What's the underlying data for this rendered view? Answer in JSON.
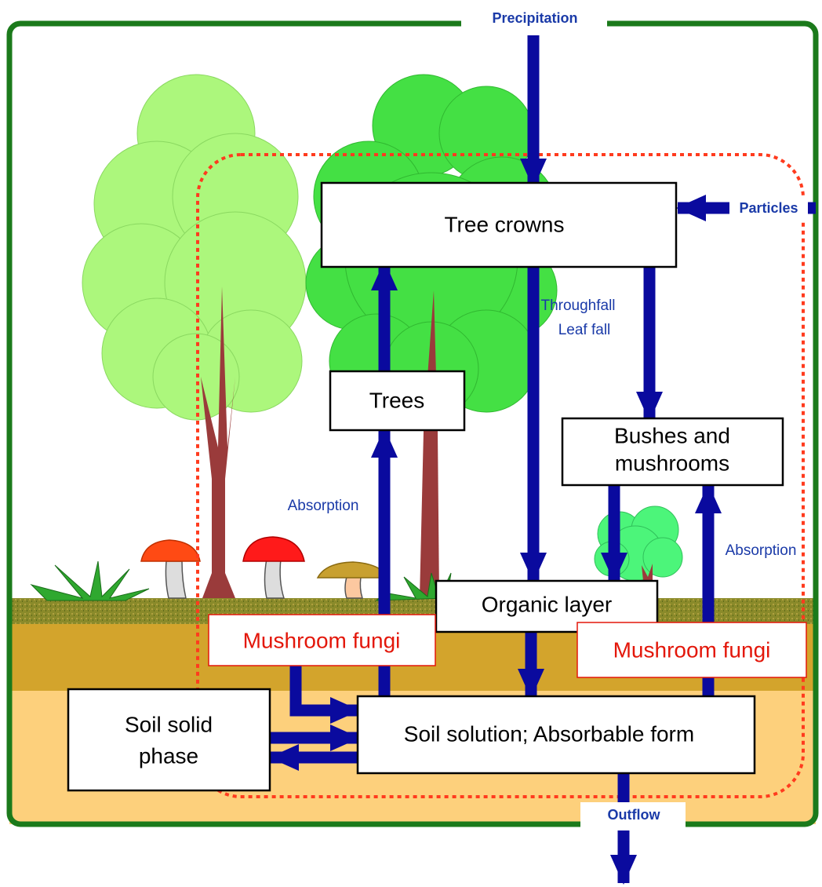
{
  "flows": {
    "precipitation": "Precipitation",
    "particles": "Particles",
    "throughfall": [
      "Throughfall",
      "Leaf fall"
    ],
    "absorption_trees": "Absorption",
    "absorption_bushes": "Absorption",
    "outflow": "Outflow"
  },
  "boxes": {
    "tree_crowns": "Tree crowns",
    "trees": "Trees",
    "bushes": [
      "Bushes and",
      "mushrooms"
    ],
    "organic_layer": "Organic layer",
    "fungi_left": "Mushroom fungi",
    "fungi_right": "Mushroom fungi",
    "soil_solution": "Soil solution; Absorbable form",
    "soil_solid": [
      "Soil solid",
      "phase"
    ]
  }
}
